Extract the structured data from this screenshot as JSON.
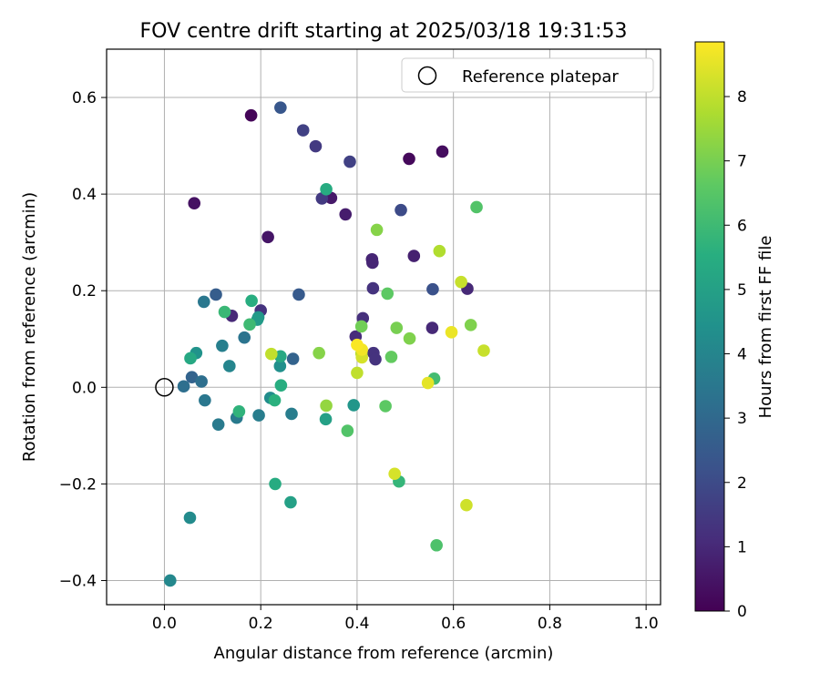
{
  "chart_data": {
    "type": "scatter",
    "title": "FOV centre drift starting at 2025/03/18 19:31:53",
    "xlabel": "Angular distance from reference (arcmin)",
    "ylabel": "Rotation from reference (arcmin)",
    "xlim": [
      -0.12,
      1.03
    ],
    "ylim": [
      -0.45,
      0.7
    ],
    "x_ticks": [
      0.0,
      0.2,
      0.4,
      0.6,
      0.8,
      1.0
    ],
    "x_tick_labels": [
      "0.0",
      "0.2",
      "0.4",
      "0.6",
      "0.8",
      "1.0"
    ],
    "y_ticks": [
      -0.4,
      -0.2,
      0.0,
      0.2,
      0.4,
      0.6
    ],
    "y_tick_labels": [
      "−0.4",
      "−0.2",
      "0.0",
      "0.2",
      "0.4",
      "0.6"
    ],
    "grid": true,
    "legend": {
      "position": "top-right",
      "entries": [
        {
          "label": "Reference platepar",
          "marker": "open-circle",
          "color": "#000000"
        }
      ]
    },
    "reference_point": {
      "x": 0.0,
      "y": 0.0
    },
    "colorbar": {
      "label": "Hours from first FF file",
      "colormap": "viridis",
      "range": [
        0,
        8.85
      ],
      "ticks": [
        0,
        1,
        2,
        3,
        4,
        5,
        6,
        7,
        8
      ],
      "tick_labels": [
        "0",
        "1",
        "2",
        "3",
        "4",
        "5",
        "6",
        "7",
        "8"
      ]
    },
    "points": [
      {
        "x": 0.18,
        "y": 0.563,
        "c": 0.1
      },
      {
        "x": 0.508,
        "y": 0.473,
        "c": 0.2
      },
      {
        "x": 0.577,
        "y": 0.488,
        "c": 0.3
      },
      {
        "x": 0.062,
        "y": 0.381,
        "c": 0.4
      },
      {
        "x": 0.215,
        "y": 0.311,
        "c": 0.5
      },
      {
        "x": 0.346,
        "y": 0.392,
        "c": 0.6
      },
      {
        "x": 0.376,
        "y": 0.358,
        "c": 0.7
      },
      {
        "x": 0.518,
        "y": 0.272,
        "c": 0.8
      },
      {
        "x": 0.431,
        "y": 0.265,
        "c": 0.9
      },
      {
        "x": 0.432,
        "y": 0.258,
        "c": 0.9
      },
      {
        "x": 0.556,
        "y": 0.123,
        "c": 1.0
      },
      {
        "x": 0.629,
        "y": 0.204,
        "c": 1.0
      },
      {
        "x": 0.14,
        "y": 0.148,
        "c": 1.0
      },
      {
        "x": 0.397,
        "y": 0.105,
        "c": 1.1
      },
      {
        "x": 0.412,
        "y": 0.143,
        "c": 1.2
      },
      {
        "x": 0.434,
        "y": 0.071,
        "c": 1.3
      },
      {
        "x": 0.438,
        "y": 0.058,
        "c": 1.3
      },
      {
        "x": 0.433,
        "y": 0.205,
        "c": 1.3
      },
      {
        "x": 0.2,
        "y": 0.159,
        "c": 1.3
      },
      {
        "x": 0.314,
        "y": 0.499,
        "c": 1.5
      },
      {
        "x": 0.327,
        "y": 0.391,
        "c": 1.5
      },
      {
        "x": 0.288,
        "y": 0.532,
        "c": 1.7
      },
      {
        "x": 0.385,
        "y": 0.467,
        "c": 1.7
      },
      {
        "x": 0.491,
        "y": 0.367,
        "c": 2.0
      },
      {
        "x": 0.557,
        "y": 0.203,
        "c": 2.2
      },
      {
        "x": 0.241,
        "y": 0.579,
        "c": 2.4
      },
      {
        "x": 0.279,
        "y": 0.192,
        "c": 2.5
      },
      {
        "x": 0.107,
        "y": 0.192,
        "c": 2.6
      },
      {
        "x": 0.267,
        "y": 0.059,
        "c": 2.8
      },
      {
        "x": 0.057,
        "y": 0.021,
        "c": 2.8
      },
      {
        "x": 0.077,
        "y": 0.012,
        "c": 3.2
      },
      {
        "x": 0.04,
        "y": 0.002,
        "c": 3.2
      },
      {
        "x": 0.166,
        "y": 0.103,
        "c": 3.4
      },
      {
        "x": 0.082,
        "y": 0.177,
        "c": 3.5
      },
      {
        "x": 0.084,
        "y": -0.027,
        "c": 3.5
      },
      {
        "x": 0.112,
        "y": -0.077,
        "c": 3.6
      },
      {
        "x": 0.15,
        "y": -0.063,
        "c": 3.6
      },
      {
        "x": 0.196,
        "y": -0.058,
        "c": 3.7
      },
      {
        "x": 0.264,
        "y": -0.055,
        "c": 3.7
      },
      {
        "x": 0.12,
        "y": 0.086,
        "c": 3.8
      },
      {
        "x": 0.135,
        "y": 0.044,
        "c": 4.0
      },
      {
        "x": 0.012,
        "y": -0.4,
        "c": 4.1
      },
      {
        "x": 0.053,
        "y": -0.27,
        "c": 4.2
      },
      {
        "x": 0.22,
        "y": -0.022,
        "c": 4.3
      },
      {
        "x": 0.24,
        "y": 0.044,
        "c": 4.4
      },
      {
        "x": 0.066,
        "y": 0.071,
        "c": 4.5
      },
      {
        "x": 0.195,
        "y": 0.145,
        "c": 4.6
      },
      {
        "x": 0.393,
        "y": -0.037,
        "c": 4.6
      },
      {
        "x": 0.193,
        "y": 0.14,
        "c": 4.8
      },
      {
        "x": 0.335,
        "y": -0.066,
        "c": 5.0
      },
      {
        "x": 0.262,
        "y": -0.238,
        "c": 5.0
      },
      {
        "x": 0.241,
        "y": 0.064,
        "c": 5.3
      },
      {
        "x": 0.054,
        "y": 0.06,
        "c": 5.3
      },
      {
        "x": 0.336,
        "y": 0.41,
        "c": 5.4
      },
      {
        "x": 0.23,
        "y": -0.2,
        "c": 5.4
      },
      {
        "x": 0.242,
        "y": 0.004,
        "c": 5.5
      },
      {
        "x": 0.181,
        "y": 0.179,
        "c": 5.5
      },
      {
        "x": 0.229,
        "y": -0.027,
        "c": 5.6
      },
      {
        "x": 0.155,
        "y": -0.05,
        "c": 5.7
      },
      {
        "x": 0.487,
        "y": -0.195,
        "c": 5.8
      },
      {
        "x": 0.125,
        "y": 0.156,
        "c": 5.9
      },
      {
        "x": 0.177,
        "y": 0.13,
        "c": 6.0
      },
      {
        "x": 0.56,
        "y": 0.018,
        "c": 6.1
      },
      {
        "x": 0.565,
        "y": -0.327,
        "c": 6.3
      },
      {
        "x": 0.648,
        "y": 0.373,
        "c": 6.4
      },
      {
        "x": 0.38,
        "y": -0.09,
        "c": 6.4
      },
      {
        "x": 0.459,
        "y": -0.039,
        "c": 6.6
      },
      {
        "x": 0.463,
        "y": 0.194,
        "c": 6.6
      },
      {
        "x": 0.471,
        "y": 0.063,
        "c": 6.7
      },
      {
        "x": 0.409,
        "y": 0.126,
        "c": 6.9
      },
      {
        "x": 0.482,
        "y": 0.123,
        "c": 7.0
      },
      {
        "x": 0.509,
        "y": 0.101,
        "c": 7.1
      },
      {
        "x": 0.636,
        "y": 0.129,
        "c": 7.1
      },
      {
        "x": 0.321,
        "y": 0.071,
        "c": 7.2
      },
      {
        "x": 0.441,
        "y": 0.326,
        "c": 7.2
      },
      {
        "x": 0.336,
        "y": -0.038,
        "c": 7.4
      },
      {
        "x": 0.571,
        "y": 0.282,
        "c": 7.8
      },
      {
        "x": 0.409,
        "y": 0.07,
        "c": 7.9
      },
      {
        "x": 0.222,
        "y": 0.069,
        "c": 8.0
      },
      {
        "x": 0.4,
        "y": 0.03,
        "c": 8.0
      },
      {
        "x": 0.616,
        "y": 0.218,
        "c": 8.1
      },
      {
        "x": 0.663,
        "y": 0.076,
        "c": 8.1
      },
      {
        "x": 0.627,
        "y": -0.244,
        "c": 8.2
      },
      {
        "x": 0.478,
        "y": -0.179,
        "c": 8.3
      },
      {
        "x": 0.41,
        "y": 0.062,
        "c": 8.3
      },
      {
        "x": 0.547,
        "y": 0.009,
        "c": 8.5
      },
      {
        "x": 0.596,
        "y": 0.114,
        "c": 8.6
      },
      {
        "x": 0.41,
        "y": 0.078,
        "c": 8.7
      },
      {
        "x": 0.4,
        "y": 0.088,
        "c": 8.8
      }
    ]
  }
}
